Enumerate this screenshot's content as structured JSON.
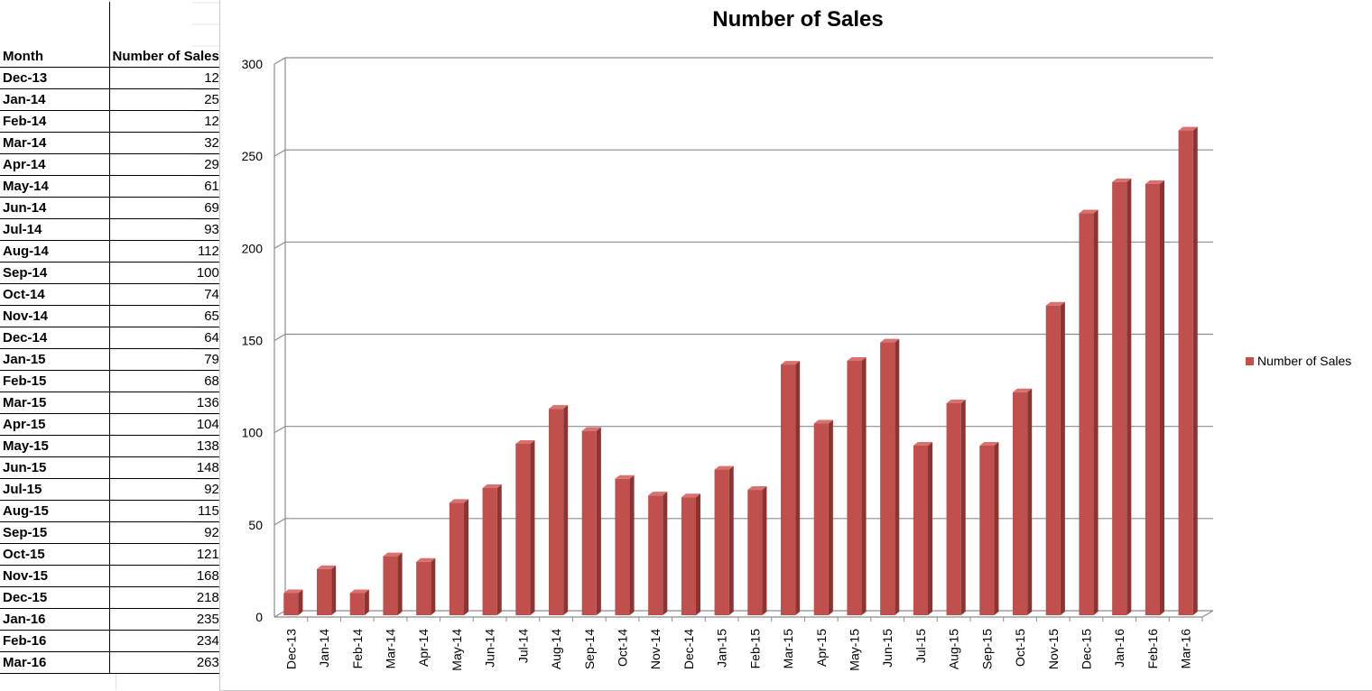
{
  "table": {
    "headers": [
      "Month",
      "Number of Sales"
    ],
    "rows": [
      [
        "Dec-13",
        "12"
      ],
      [
        "Jan-14",
        "25"
      ],
      [
        "Feb-14",
        "12"
      ],
      [
        "Mar-14",
        "32"
      ],
      [
        "Apr-14",
        "29"
      ],
      [
        "May-14",
        "61"
      ],
      [
        "Jun-14",
        "69"
      ],
      [
        "Jul-14",
        "93"
      ],
      [
        "Aug-14",
        "112"
      ],
      [
        "Sep-14",
        "100"
      ],
      [
        "Oct-14",
        "74"
      ],
      [
        "Nov-14",
        "65"
      ],
      [
        "Dec-14",
        "64"
      ],
      [
        "Jan-15",
        "79"
      ],
      [
        "Feb-15",
        "68"
      ],
      [
        "Mar-15",
        "136"
      ],
      [
        "Apr-15",
        "104"
      ],
      [
        "May-15",
        "138"
      ],
      [
        "Jun-15",
        "148"
      ],
      [
        "Jul-15",
        "92"
      ],
      [
        "Aug-15",
        "115"
      ],
      [
        "Sep-15",
        "92"
      ],
      [
        "Oct-15",
        "121"
      ],
      [
        "Nov-15",
        "168"
      ],
      [
        "Dec-15",
        "218"
      ],
      [
        "Jan-16",
        "235"
      ],
      [
        "Feb-16",
        "234"
      ],
      [
        "Mar-16",
        "263"
      ]
    ]
  },
  "chart_data": {
    "type": "bar",
    "title": "Number of Sales",
    "xlabel": "",
    "ylabel": "",
    "categories": [
      "Dec-13",
      "Jan-14",
      "Feb-14",
      "Mar-14",
      "Apr-14",
      "May-14",
      "Jun-14",
      "Jul-14",
      "Aug-14",
      "Sep-14",
      "Oct-14",
      "Nov-14",
      "Dec-14",
      "Jan-15",
      "Feb-15",
      "Mar-15",
      "Apr-15",
      "May-15",
      "Jun-15",
      "Jul-15",
      "Aug-15",
      "Sep-15",
      "Oct-15",
      "Nov-15",
      "Dec-15",
      "Jan-16",
      "Feb-16",
      "Mar-16"
    ],
    "series": [
      {
        "name": "Number of Sales",
        "values": [
          12,
          25,
          12,
          32,
          29,
          61,
          69,
          93,
          112,
          100,
          74,
          65,
          64,
          79,
          68,
          136,
          104,
          138,
          148,
          92,
          115,
          92,
          121,
          168,
          218,
          235,
          234,
          263
        ]
      }
    ],
    "ylim": [
      0,
      300
    ],
    "yticks": [
      0,
      50,
      100,
      150,
      200,
      250,
      300
    ],
    "grid": true,
    "legend_position": "right",
    "bar_3d": true,
    "colors": {
      "bar_front": "#c0504d",
      "bar_side": "#8c3432",
      "bar_top": "#d9716e",
      "grid": "#8c8c8c",
      "axis": "#8c8c8c"
    }
  }
}
